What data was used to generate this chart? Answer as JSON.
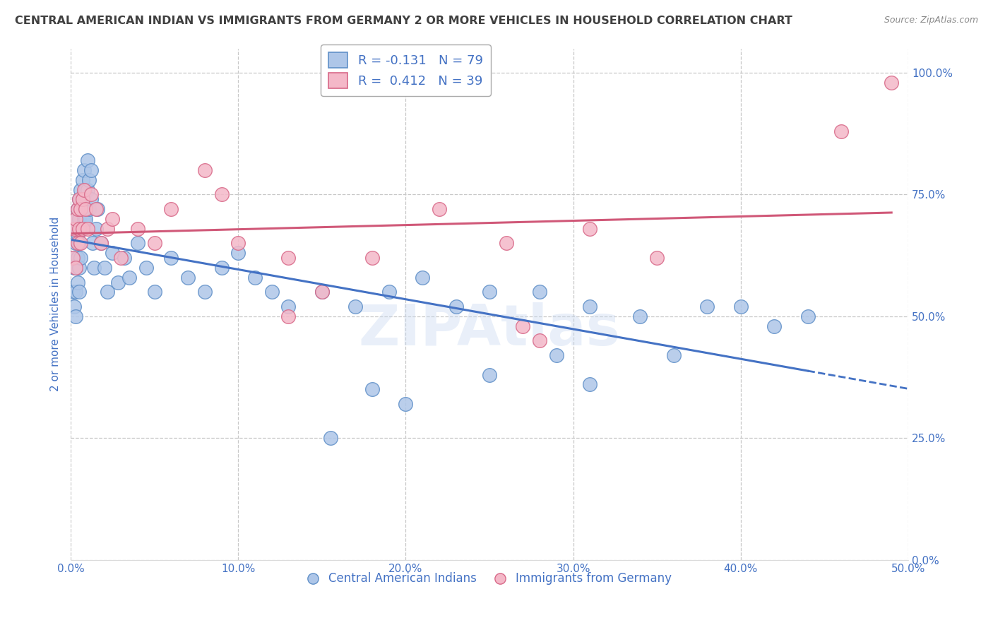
{
  "title": "CENTRAL AMERICAN INDIAN VS IMMIGRANTS FROM GERMANY 2 OR MORE VEHICLES IN HOUSEHOLD CORRELATION CHART",
  "source": "Source: ZipAtlas.com",
  "ylabel": "2 or more Vehicles in Household",
  "xlim": [
    0.0,
    0.5
  ],
  "ylim": [
    0.0,
    1.05
  ],
  "xticks": [
    0.0,
    0.1,
    0.2,
    0.3,
    0.4,
    0.5
  ],
  "xticklabels": [
    "0.0%",
    "10.0%",
    "20.0%",
    "30.0%",
    "40.0%",
    "50.0%"
  ],
  "yticks": [
    0.0,
    0.25,
    0.5,
    0.75,
    1.0
  ],
  "yticklabels": [
    "0.0%",
    "25.0%",
    "50.0%",
    "75.0%",
    "100.0%"
  ],
  "grid_color": "#c8c8c8",
  "background_color": "#ffffff",
  "blue_color": "#aec6e8",
  "pink_color": "#f4b8c8",
  "blue_edge_color": "#6090c8",
  "pink_edge_color": "#d86888",
  "blue_line_color": "#4472c4",
  "pink_line_color": "#d05878",
  "watermark": "ZIPAtlas",
  "legend_R_blue": "-0.131",
  "legend_N_blue": "79",
  "legend_R_pink": "0.412",
  "legend_N_pink": "39",
  "title_color": "#404040",
  "axis_label_color": "#4472c4",
  "tick_color": "#4472c4",
  "blue_scatter_x": [
    0.001,
    0.001,
    0.002,
    0.002,
    0.002,
    0.003,
    0.003,
    0.003,
    0.003,
    0.003,
    0.004,
    0.004,
    0.004,
    0.004,
    0.005,
    0.005,
    0.005,
    0.005,
    0.005,
    0.006,
    0.006,
    0.006,
    0.006,
    0.007,
    0.007,
    0.007,
    0.008,
    0.008,
    0.008,
    0.009,
    0.009,
    0.01,
    0.01,
    0.011,
    0.011,
    0.012,
    0.012,
    0.013,
    0.014,
    0.015,
    0.016,
    0.018,
    0.02,
    0.022,
    0.025,
    0.028,
    0.032,
    0.035,
    0.04,
    0.045,
    0.05,
    0.06,
    0.07,
    0.08,
    0.09,
    0.1,
    0.11,
    0.12,
    0.13,
    0.15,
    0.17,
    0.19,
    0.21,
    0.23,
    0.25,
    0.28,
    0.31,
    0.34,
    0.38,
    0.4,
    0.42,
    0.44,
    0.31,
    0.29,
    0.36,
    0.25,
    0.2,
    0.18,
    0.155
  ],
  "blue_scatter_y": [
    0.62,
    0.55,
    0.68,
    0.6,
    0.52,
    0.7,
    0.65,
    0.6,
    0.55,
    0.5,
    0.72,
    0.67,
    0.62,
    0.57,
    0.74,
    0.7,
    0.65,
    0.6,
    0.55,
    0.76,
    0.72,
    0.68,
    0.62,
    0.78,
    0.73,
    0.68,
    0.8,
    0.75,
    0.7,
    0.76,
    0.7,
    0.82,
    0.76,
    0.78,
    0.72,
    0.8,
    0.74,
    0.65,
    0.6,
    0.68,
    0.72,
    0.65,
    0.6,
    0.55,
    0.63,
    0.57,
    0.62,
    0.58,
    0.65,
    0.6,
    0.55,
    0.62,
    0.58,
    0.55,
    0.6,
    0.63,
    0.58,
    0.55,
    0.52,
    0.55,
    0.52,
    0.55,
    0.58,
    0.52,
    0.55,
    0.55,
    0.52,
    0.5,
    0.52,
    0.52,
    0.48,
    0.5,
    0.36,
    0.42,
    0.42,
    0.38,
    0.32,
    0.35,
    0.25
  ],
  "pink_scatter_x": [
    0.001,
    0.002,
    0.003,
    0.003,
    0.004,
    0.004,
    0.005,
    0.005,
    0.006,
    0.006,
    0.007,
    0.007,
    0.008,
    0.009,
    0.01,
    0.012,
    0.015,
    0.018,
    0.022,
    0.025,
    0.03,
    0.04,
    0.05,
    0.06,
    0.08,
    0.09,
    0.1,
    0.13,
    0.15,
    0.18,
    0.22,
    0.26,
    0.31,
    0.35,
    0.27,
    0.13,
    0.28,
    0.46,
    0.49
  ],
  "pink_scatter_y": [
    0.62,
    0.68,
    0.7,
    0.6,
    0.72,
    0.65,
    0.74,
    0.68,
    0.72,
    0.65,
    0.74,
    0.68,
    0.76,
    0.72,
    0.68,
    0.75,
    0.72,
    0.65,
    0.68,
    0.7,
    0.62,
    0.68,
    0.65,
    0.72,
    0.8,
    0.75,
    0.65,
    0.62,
    0.55,
    0.62,
    0.72,
    0.65,
    0.68,
    0.62,
    0.48,
    0.5,
    0.45,
    0.88,
    0.98
  ]
}
